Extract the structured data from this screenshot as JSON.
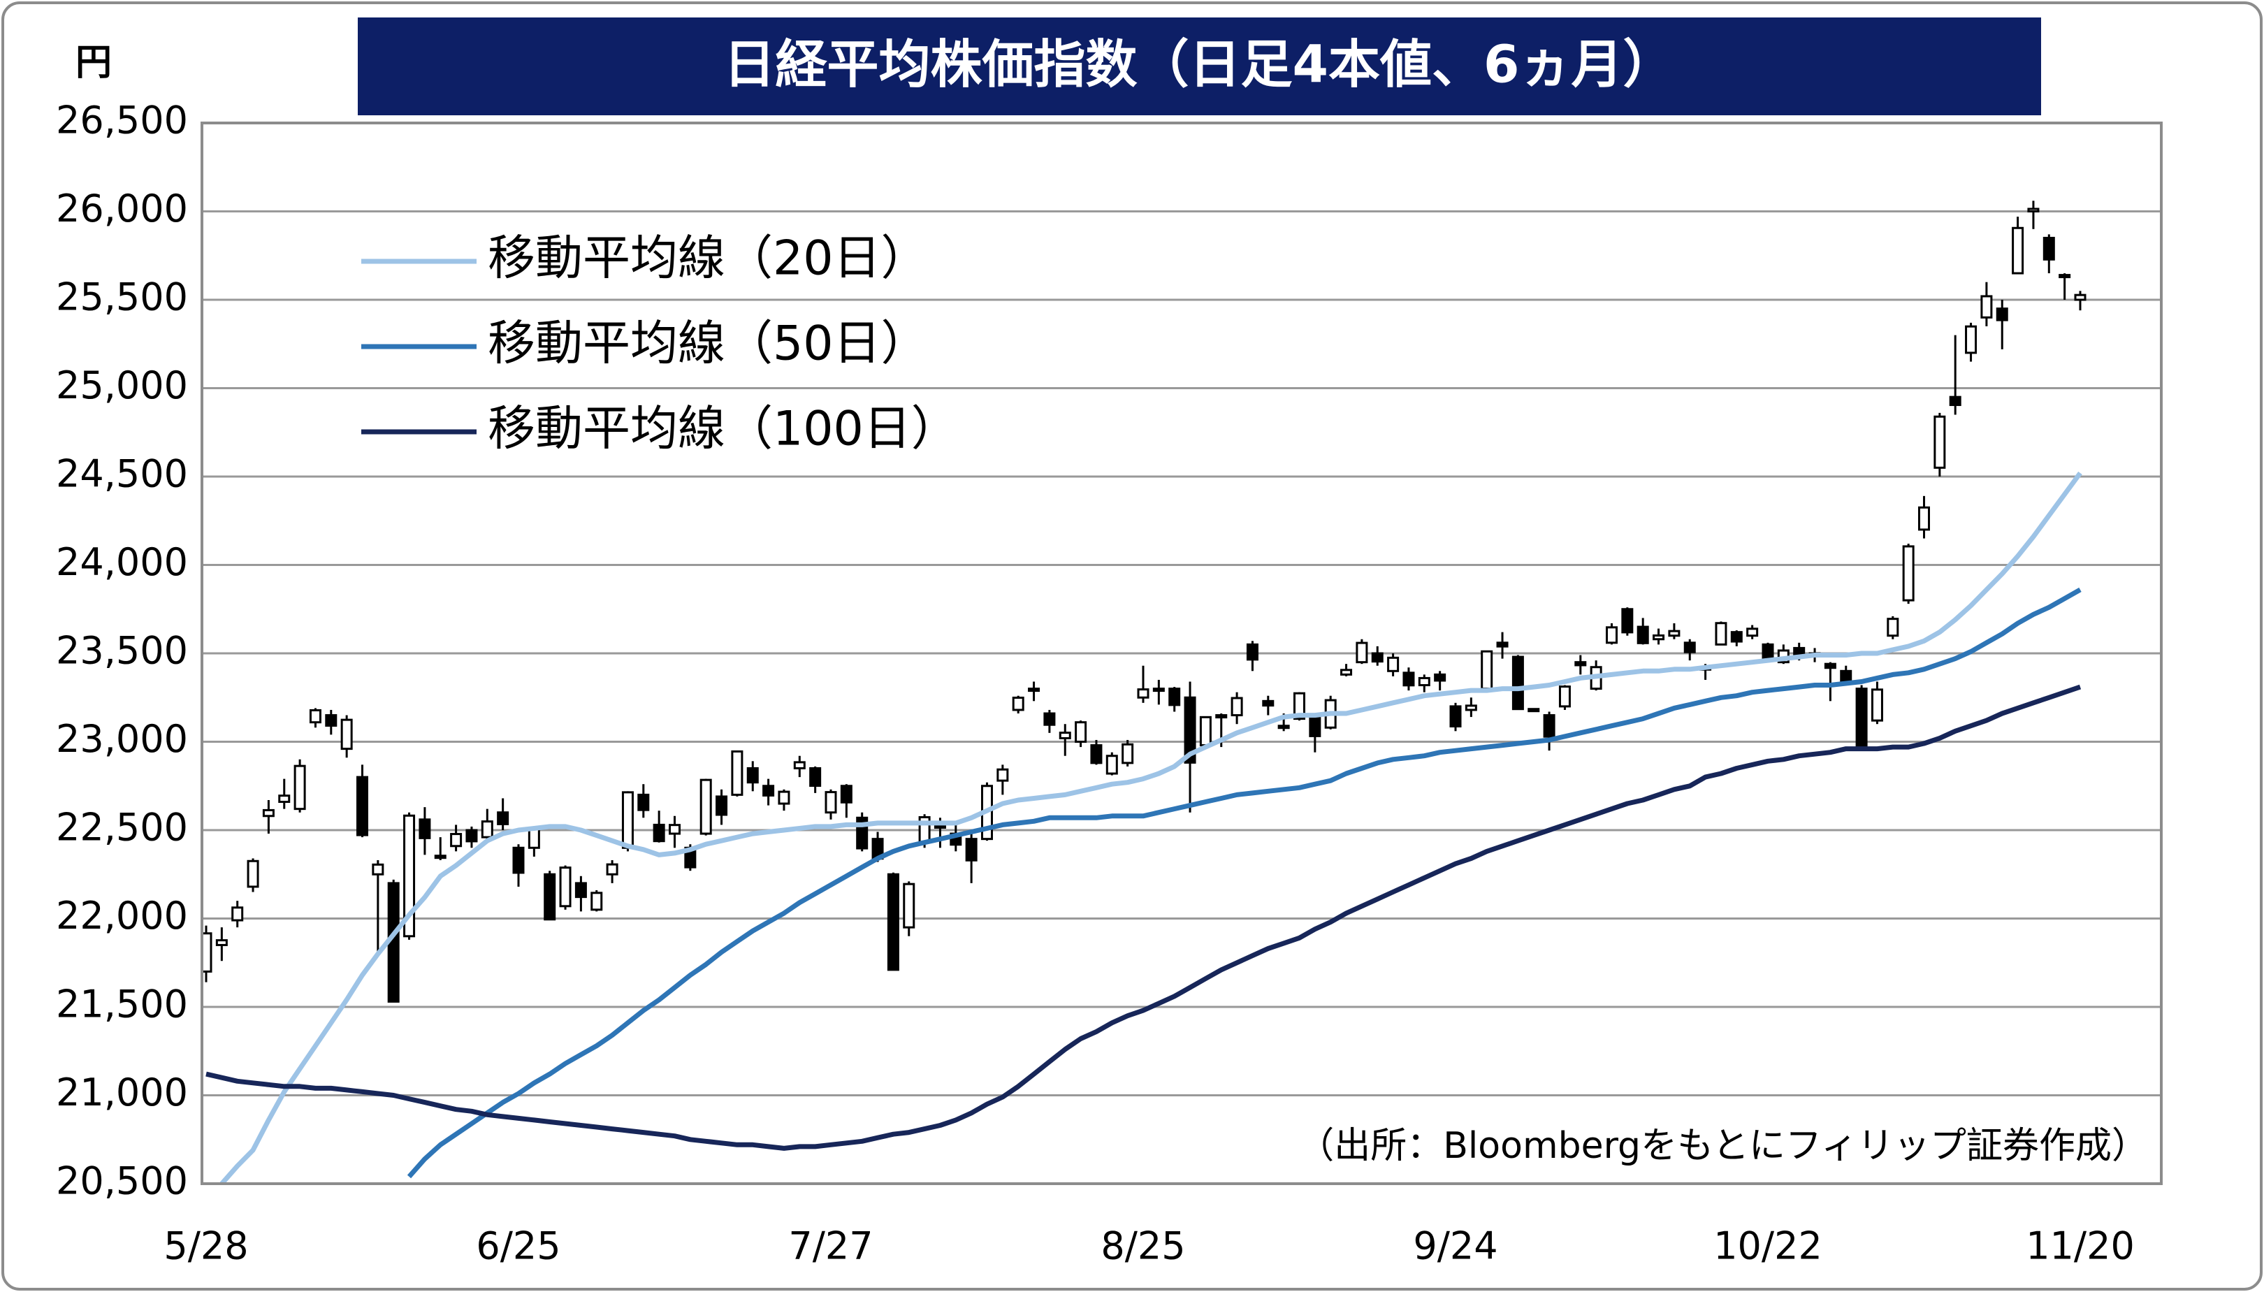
{
  "chart_data": {
    "type": "candlestick",
    "title": "日経平均株価指数（日足4本値、6ヵ月）",
    "y_unit": "円",
    "source": "（出所：Bloombergをもとにフィリップ証券作成）",
    "legend": "upper left",
    "grid": true,
    "up_color": "#ffffff",
    "down_color": "#000000",
    "ylim": [
      20500,
      26500
    ],
    "yticks": [
      {
        "value": 20500,
        "label": "20,500"
      },
      {
        "value": 21000,
        "label": "21,000"
      },
      {
        "value": 21500,
        "label": "21,500"
      },
      {
        "value": 22000,
        "label": "22,000"
      },
      {
        "value": 22500,
        "label": "22,500"
      },
      {
        "value": 23000,
        "label": "23,000"
      },
      {
        "value": 23500,
        "label": "23,500"
      },
      {
        "value": 24000,
        "label": "24,000"
      },
      {
        "value": 24500,
        "label": "24,500"
      },
      {
        "value": 25000,
        "label": "25,000"
      },
      {
        "value": 25500,
        "label": "25,500"
      },
      {
        "value": 26000,
        "label": "26,000"
      },
      {
        "value": 26500,
        "label": "26,500"
      }
    ],
    "categories": [
      "5/28",
      null,
      null,
      null,
      null,
      null,
      null,
      null,
      null,
      null,
      null,
      null,
      null,
      null,
      null,
      null,
      null,
      null,
      null,
      null,
      "6/25",
      null,
      null,
      null,
      null,
      null,
      null,
      null,
      null,
      null,
      null,
      null,
      null,
      null,
      null,
      null,
      null,
      null,
      null,
      null,
      "7/27",
      null,
      null,
      null,
      null,
      null,
      null,
      null,
      null,
      null,
      null,
      null,
      null,
      null,
      null,
      null,
      null,
      null,
      null,
      null,
      "8/25",
      null,
      null,
      null,
      null,
      null,
      null,
      null,
      null,
      null,
      null,
      null,
      null,
      null,
      null,
      null,
      null,
      null,
      null,
      null,
      "9/24",
      null,
      null,
      null,
      null,
      null,
      null,
      null,
      null,
      null,
      null,
      null,
      null,
      null,
      null,
      null,
      null,
      null,
      null,
      null,
      "10/22",
      null,
      null,
      null,
      null,
      null,
      null,
      null,
      null,
      null,
      null,
      null,
      null,
      null,
      null,
      null,
      null,
      null,
      null,
      null,
      "11/20"
    ],
    "open": [
      21700,
      21850,
      21990,
      22180,
      22580,
      22660,
      22620,
      23110,
      23150,
      22960,
      22800,
      22250,
      22200,
      21900,
      22560,
      22350,
      22410,
      22500,
      22460,
      22600,
      22400,
      22400,
      22250,
      22070,
      22200,
      22050,
      22250,
      22400,
      22700,
      22530,
      22480,
      22400,
      22480,
      22690,
      22700,
      22850,
      22750,
      22650,
      22850,
      22850,
      22600,
      22750,
      22570,
      22450,
      22250,
      21950,
      22430,
      22540,
      22480,
      22450,
      22450,
      22780,
      23180,
      23300,
      23160,
      23020,
      23000,
      22980,
      22820,
      22880,
      23250,
      23300,
      23300,
      23250,
      22980,
      23150,
      23150,
      23550,
      23230,
      23090,
      23130,
      23140,
      23080,
      23380,
      23450,
      23500,
      23400,
      23390,
      23320,
      23380,
      23200,
      23180,
      23300,
      23560,
      23480,
      23185,
      23150,
      23200,
      23450,
      23300,
      23560,
      23750,
      23650,
      23580,
      23600,
      23560,
      23420,
      23550,
      23620,
      23600,
      23550,
      23450,
      23530,
      23500,
      23440,
      23400,
      23300,
      23120,
      23600,
      23800,
      24200,
      24550,
      24950,
      25200,
      25400,
      25450,
      25650,
      26000,
      25850,
      25640,
      25500
    ],
    "high": [
      21960,
      21950,
      22100,
      22340,
      22670,
      22790,
      22900,
      23190,
      23180,
      23150,
      22870,
      22330,
      22220,
      22600,
      22630,
      22460,
      22530,
      22520,
      22620,
      22680,
      22420,
      22520,
      22270,
      22300,
      22240,
      22160,
      22330,
      22720,
      22760,
      22610,
      22580,
      22420,
      22790,
      22730,
      22950,
      22890,
      22790,
      22730,
      22920,
      22860,
      22730,
      22760,
      22600,
      22490,
      22260,
      22210,
      22590,
      22570,
      22530,
      22480,
      22770,
      22870,
      23260,
      23340,
      23180,
      23100,
      23120,
      23010,
      22940,
      23010,
      23430,
      23350,
      23310,
      23340,
      23140,
      23160,
      23280,
      23570,
      23260,
      23160,
      23280,
      23160,
      23260,
      23440,
      23580,
      23540,
      23500,
      23420,
      23380,
      23400,
      23220,
      23250,
      23510,
      23620,
      23490,
      23185,
      23170,
      23320,
      23490,
      23460,
      23670,
      23760,
      23700,
      23640,
      23670,
      23580,
      23440,
      23680,
      23630,
      23660,
      23560,
      23550,
      23560,
      23530,
      23450,
      23430,
      23320,
      23340,
      23710,
      24120,
      24390,
      24860,
      25300,
      25370,
      25600,
      25500,
      25970,
      26060,
      25870,
      25650,
      25550
    ],
    "low": [
      21640,
      21760,
      21950,
      22150,
      22480,
      22620,
      22600,
      23080,
      23040,
      22910,
      22460,
      21790,
      21530,
      21880,
      22360,
      22330,
      22380,
      22400,
      22430,
      22500,
      22180,
      22350,
      21990,
      22050,
      22040,
      22040,
      22200,
      22380,
      22570,
      22430,
      22400,
      22270,
      22470,
      22530,
      22690,
      22720,
      22640,
      22610,
      22800,
      22710,
      22560,
      22570,
      22380,
      22320,
      21710,
      21900,
      22400,
      22400,
      22380,
      22200,
      22440,
      22700,
      23160,
      23230,
      23050,
      22920,
      22970,
      22870,
      22810,
      22860,
      23220,
      23210,
      23170,
      22600,
      22970,
      22970,
      23100,
      23400,
      23150,
      23060,
      23120,
      22940,
      23070,
      23370,
      23440,
      23430,
      23370,
      23290,
      23280,
      23290,
      23060,
      23140,
      23290,
      23470,
      23180,
      23185,
      22950,
      23180,
      23380,
      23290,
      23550,
      23600,
      23550,
      23550,
      23580,
      23460,
      23350,
      23550,
      23540,
      23580,
      23460,
      23440,
      23460,
      23450,
      23230,
      23320,
      22950,
      23100,
      23580,
      23780,
      24150,
      24500,
      24850,
      25150,
      25350,
      25220,
      25650,
      25900,
      25650,
      25500,
      25440
    ],
    "close": [
      21916,
      21877,
      22062,
      22325,
      22613,
      22695,
      22863,
      23178,
      23091,
      23124,
      22472,
      22305,
      21530,
      22582,
      22455,
      22355,
      22478,
      22437,
      22549,
      22534,
      22259,
      22512,
      21995,
      22288,
      22122,
      22145,
      22306,
      22714,
      22614,
      22438,
      22529,
      22290,
      22784,
      22587,
      22945,
      22770,
      22696,
      22717,
      22884,
      22751,
      22715,
      22657,
      22397,
      22339,
      21710,
      22195,
      22573,
      22514,
      22418,
      22329,
      22750,
      22843,
      23249,
      23289,
      23096,
      23051,
      23110,
      22880,
      22920,
      22985,
      23296,
      23290,
      23208,
      22882,
      23139,
      23138,
      23247,
      23465,
      23205,
      23089,
      23274,
      23032,
      23235,
      23406,
      23559,
      23454,
      23475,
      23319,
      23360,
      23346,
      23087,
      23204,
      23511,
      23539,
      23185,
      23185,
      23029,
      23312,
      23433,
      23422,
      23647,
      23619,
      23558,
      23601,
      23626,
      23507,
      23410,
      23671,
      23567,
      23639,
      23474,
      23516,
      23494,
      23485,
      23418,
      23331,
      22977,
      23295,
      23695,
      24105,
      24325,
      24839,
      24905,
      25349,
      25520,
      25385,
      25906,
      26014,
      25728,
      25634,
      25527
    ],
    "series": [
      {
        "name": "移動平均線（20日）",
        "color": "#9dc3e6",
        "values": [
          null,
          20500,
          20600,
          20690,
          20860,
          21020,
          21150,
          21280,
          21410,
          21540,
          21680,
          21800,
          21910,
          22020,
          22120,
          22240,
          22300,
          22370,
          22440,
          22480,
          22500,
          22510,
          22520,
          22520,
          22500,
          22470,
          22440,
          22410,
          22390,
          22360,
          22370,
          22390,
          22420,
          22440,
          22460,
          22480,
          22490,
          22500,
          22510,
          22520,
          22520,
          22530,
          22530,
          22540,
          22540,
          22540,
          22540,
          22540,
          22540,
          22570,
          22610,
          22650,
          22670,
          22680,
          22690,
          22700,
          22720,
          22740,
          22760,
          22770,
          22790,
          22820,
          22860,
          22930,
          22970,
          23010,
          23050,
          23080,
          23110,
          23140,
          23150,
          23150,
          23160,
          23160,
          23180,
          23200,
          23220,
          23240,
          23260,
          23270,
          23280,
          23290,
          23290,
          23300,
          23300,
          23310,
          23320,
          23340,
          23360,
          23370,
          23380,
          23390,
          23400,
          23400,
          23410,
          23410,
          23420,
          23430,
          23440,
          23450,
          23460,
          23470,
          23480,
          23490,
          23490,
          23490,
          23500,
          23500,
          23520,
          23540,
          23570,
          23620,
          23690,
          23770,
          23860,
          23950,
          24050,
          24160,
          24280,
          24400,
          24520
        ]
      },
      {
        "name": "移動平均線（50日）",
        "color": "#2e75b6",
        "values": [
          null,
          null,
          null,
          null,
          null,
          null,
          null,
          null,
          null,
          null,
          null,
          null,
          null,
          20540,
          20640,
          20720,
          20780,
          20840,
          20900,
          20960,
          21010,
          21070,
          21120,
          21180,
          21230,
          21280,
          21340,
          21410,
          21480,
          21540,
          21610,
          21680,
          21740,
          21810,
          21870,
          21930,
          21980,
          22030,
          22090,
          22140,
          22190,
          22240,
          22290,
          22340,
          22380,
          22410,
          22430,
          22450,
          22470,
          22490,
          22510,
          22530,
          22540,
          22550,
          22570,
          22570,
          22570,
          22570,
          22580,
          22580,
          22580,
          22600,
          22620,
          22640,
          22660,
          22680,
          22700,
          22710,
          22720,
          22730,
          22740,
          22760,
          22780,
          22820,
          22850,
          22880,
          22900,
          22910,
          22920,
          22940,
          22950,
          22960,
          22970,
          22980,
          22990,
          23000,
          23010,
          23030,
          23050,
          23070,
          23090,
          23110,
          23130,
          23160,
          23190,
          23210,
          23230,
          23250,
          23260,
          23280,
          23290,
          23300,
          23310,
          23320,
          23320,
          23330,
          23340,
          23360,
          23380,
          23390,
          23410,
          23440,
          23470,
          23510,
          23560,
          23610,
          23670,
          23720,
          23760,
          23810,
          23860
        ]
      },
      {
        "name": "移動平均線（100日）",
        "color": "#172659",
        "values": [
          21120,
          21100,
          21080,
          21070,
          21060,
          21050,
          21050,
          21040,
          21040,
          21030,
          21020,
          21010,
          21000,
          20980,
          20960,
          20940,
          20920,
          20910,
          20890,
          20880,
          20870,
          20860,
          20850,
          20840,
          20830,
          20820,
          20810,
          20800,
          20790,
          20780,
          20770,
          20750,
          20740,
          20730,
          20720,
          20720,
          20710,
          20700,
          20710,
          20710,
          20720,
          20730,
          20740,
          20760,
          20780,
          20790,
          20810,
          20830,
          20860,
          20900,
          20950,
          20990,
          21050,
          21120,
          21190,
          21260,
          21320,
          21360,
          21410,
          21450,
          21480,
          21520,
          21560,
          21610,
          21660,
          21710,
          21750,
          21790,
          21830,
          21860,
          21890,
          21940,
          21980,
          22030,
          22070,
          22110,
          22150,
          22190,
          22230,
          22270,
          22310,
          22340,
          22380,
          22410,
          22440,
          22470,
          22500,
          22530,
          22560,
          22590,
          22620,
          22650,
          22670,
          22700,
          22730,
          22750,
          22800,
          22820,
          22850,
          22870,
          22890,
          22900,
          22920,
          22930,
          22940,
          22960,
          22960,
          22960,
          22970,
          22970,
          22990,
          23020,
          23060,
          23090,
          23120,
          23160,
          23190,
          23220,
          23250,
          23280,
          23310
        ]
      }
    ]
  }
}
